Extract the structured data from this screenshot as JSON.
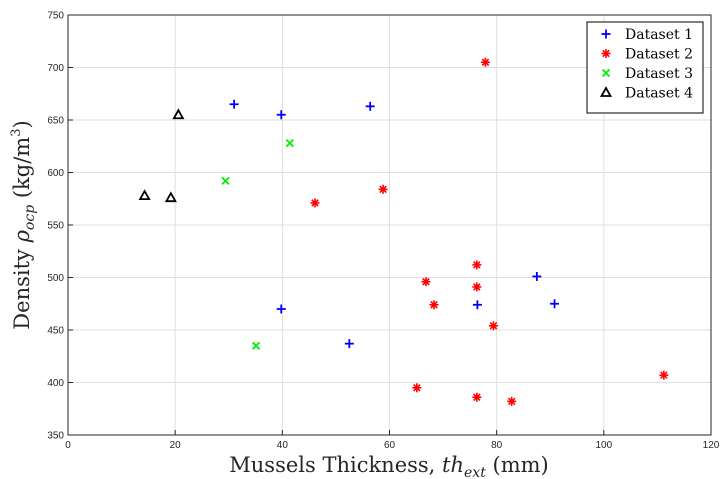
{
  "chart_data": {
    "type": "scatter",
    "title": "",
    "xlabel_text": "Mussels Thickness, ",
    "xlabel_sym": "th",
    "xlabel_sub": "ext",
    "xlabel_unit": " (mm)",
    "ylabel_text": "Density ",
    "ylabel_sym": "ρ",
    "ylabel_sub": "ocp",
    "ylabel_unit": " (kg/m",
    "ylabel_exp": "3",
    "ylabel_close": ")",
    "xlim": [
      0,
      120
    ],
    "ylim": [
      350,
      750
    ],
    "xticks": [
      0,
      20,
      40,
      60,
      80,
      100,
      120
    ],
    "yticks": [
      350,
      400,
      450,
      500,
      550,
      600,
      650,
      700,
      750
    ],
    "grid": true,
    "legend_position": "top-right",
    "series": [
      {
        "name": "Dataset 1",
        "marker": "plus",
        "color": "#0000ff",
        "x": [
          31,
          39.8,
          56.4,
          39.8,
          52.5,
          76.4,
          87.5,
          90.8
        ],
        "y": [
          665,
          655,
          663,
          470,
          437,
          474,
          501,
          475
        ]
      },
      {
        "name": "Dataset 2",
        "marker": "asterisk",
        "color": "#ff0000",
        "x": [
          77.9,
          58.8,
          46.1,
          66.8,
          68.3,
          76.3,
          76.3,
          79.4,
          65.1,
          76.3,
          82.8,
          111.2
        ],
        "y": [
          705,
          584,
          571,
          496,
          474,
          512,
          491,
          454,
          395,
          386,
          382,
          407
        ]
      },
      {
        "name": "Dataset 3",
        "marker": "x",
        "color": "#00ee00",
        "x": [
          41.4,
          29.4,
          35.1
        ],
        "y": [
          628,
          592,
          435
        ]
      },
      {
        "name": "Dataset 4",
        "marker": "triangle",
        "color": "#000000",
        "x": [
          20.6,
          14.3,
          19.2
        ],
        "y": [
          655,
          578,
          576
        ]
      }
    ]
  }
}
